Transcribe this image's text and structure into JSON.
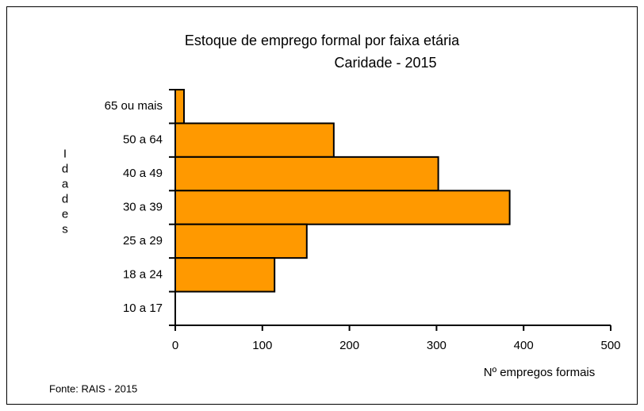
{
  "chart_data": {
    "type": "barh",
    "title": "Estoque de emprego formal por faixa etária",
    "subtitle": "Caridade - 2015",
    "y_label": "Idades",
    "x_label": "Nº empregos formais",
    "source": "Fonte: RAIS - 2015",
    "categories": [
      "65 ou mais",
      "50 a 64",
      "40 a 49",
      "30 a 39",
      "25 a 29",
      "18 a 24",
      "10 a 17"
    ],
    "values": [
      10,
      182,
      302,
      384,
      151,
      114,
      0
    ],
    "color": "#ff9900",
    "xlim": [
      0,
      500
    ],
    "xticks": [
      0,
      100,
      200,
      300,
      400,
      500
    ],
    "grid": false
  }
}
